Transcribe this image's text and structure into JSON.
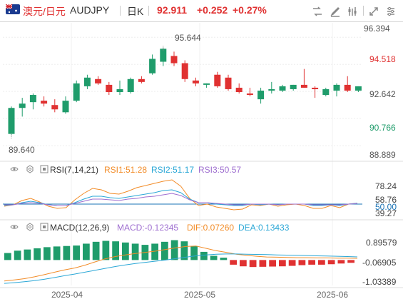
{
  "header": {
    "pair_cn": "澳元/日元",
    "symbol": "AUDJPY",
    "period": "日K",
    "price": "92.911",
    "change": "+0.252",
    "change_pct": "+0.27%",
    "up_color": "#e03131",
    "down_color": "#1f9c6b",
    "tools": [
      "compare-icon",
      "draw-icon",
      "indicator-icon",
      "fullscreen-icon",
      "settings-icon"
    ]
  },
  "chart_data": [
    {
      "type": "candlestick",
      "title": "澳元/日元 AUDJPY 日K",
      "y_ticks": [
        "96.394",
        "94.518",
        "92.642",
        "90.766",
        "88.889"
      ],
      "ylim": [
        88.2,
        97.0
      ],
      "annotations": {
        "high": "95.644",
        "low": "89.640"
      },
      "x_ticks": [
        "2025-04",
        "2025-05",
        "2025-06"
      ],
      "candles": [
        {
          "o": 89.7,
          "h": 91.6,
          "l": 89.64,
          "c": 91.5
        },
        {
          "o": 91.5,
          "h": 92.2,
          "l": 90.9,
          "c": 91.8
        },
        {
          "o": 91.9,
          "h": 92.5,
          "l": 91.4,
          "c": 92.4
        },
        {
          "o": 92.0,
          "h": 92.3,
          "l": 91.6,
          "c": 91.8
        },
        {
          "o": 91.7,
          "h": 92.1,
          "l": 91.2,
          "c": 91.4
        },
        {
          "o": 91.2,
          "h": 92.3,
          "l": 91.1,
          "c": 92.0
        },
        {
          "o": 92.0,
          "h": 93.4,
          "l": 91.9,
          "c": 93.2
        },
        {
          "o": 93.0,
          "h": 93.8,
          "l": 92.8,
          "c": 93.6
        },
        {
          "o": 93.5,
          "h": 93.7,
          "l": 93.1,
          "c": 93.2
        },
        {
          "o": 93.1,
          "h": 93.3,
          "l": 92.4,
          "c": 92.6
        },
        {
          "o": 92.6,
          "h": 93.4,
          "l": 92.4,
          "c": 92.8
        },
        {
          "o": 92.6,
          "h": 93.6,
          "l": 92.5,
          "c": 93.5
        },
        {
          "o": 93.5,
          "h": 93.7,
          "l": 93.2,
          "c": 93.3
        },
        {
          "o": 93.9,
          "h": 95.2,
          "l": 93.8,
          "c": 94.9
        },
        {
          "o": 94.7,
          "h": 95.644,
          "l": 94.4,
          "c": 95.6
        },
        {
          "o": 95.1,
          "h": 95.4,
          "l": 94.4,
          "c": 94.6
        },
        {
          "o": 94.6,
          "h": 94.8,
          "l": 93.3,
          "c": 93.5
        },
        {
          "o": 93.4,
          "h": 93.6,
          "l": 93.0,
          "c": 93.2
        },
        {
          "o": 93.1,
          "h": 93.2,
          "l": 92.9,
          "c": 93.2
        },
        {
          "o": 93.8,
          "h": 94.0,
          "l": 92.9,
          "c": 93.0
        },
        {
          "o": 93.6,
          "h": 93.8,
          "l": 92.7,
          "c": 92.8
        },
        {
          "o": 92.9,
          "h": 93.2,
          "l": 92.5,
          "c": 92.6
        },
        {
          "o": 92.5,
          "h": 92.9,
          "l": 92.3,
          "c": 92.4
        },
        {
          "o": 92.1,
          "h": 92.9,
          "l": 91.8,
          "c": 92.7
        },
        {
          "o": 92.7,
          "h": 93.3,
          "l": 92.5,
          "c": 92.8
        },
        {
          "o": 92.7,
          "h": 93.1,
          "l": 92.6,
          "c": 93.0
        },
        {
          "o": 92.8,
          "h": 93.1,
          "l": 92.7,
          "c": 93.1
        },
        {
          "o": 93.1,
          "h": 94.2,
          "l": 92.9,
          "c": 92.9
        },
        {
          "o": 92.9,
          "h": 93.0,
          "l": 92.2,
          "c": 92.8
        },
        {
          "o": 92.4,
          "h": 92.9,
          "l": 92.3,
          "c": 92.8
        },
        {
          "o": 92.7,
          "h": 93.2,
          "l": 92.3,
          "c": 93.1
        },
        {
          "o": 93.1,
          "h": 93.7,
          "l": 92.6,
          "c": 92.7
        },
        {
          "o": 92.7,
          "h": 93.0,
          "l": 92.6,
          "c": 93.0
        }
      ]
    },
    {
      "type": "line",
      "title": "RSI(7,14,21)",
      "legend": [
        {
          "label": "RSI1:51.28",
          "color": "#f28c28"
        },
        {
          "label": "RSI2:51.17",
          "color": "#2aa7d6"
        },
        {
          "label": "RSI3:50.57",
          "color": "#9f6fd0"
        }
      ],
      "y_ticks": [
        "78.24",
        "58.76",
        "50.00",
        "39.27"
      ],
      "ylim": [
        30,
        88
      ],
      "reference": 50.0,
      "series": [
        {
          "name": "RSI1",
          "color": "#f28c28",
          "values": [
            47,
            49,
            55,
            58,
            53,
            47,
            44,
            45,
            56,
            65,
            72,
            70,
            65,
            64,
            68,
            73,
            76,
            79,
            82,
            84,
            75,
            58,
            48,
            50,
            46,
            44,
            42,
            43,
            49,
            48,
            50,
            47,
            49,
            50,
            48,
            44,
            44,
            48,
            45,
            50,
            51.28
          ]
        },
        {
          "name": "RSI2",
          "color": "#2aa7d6",
          "values": [
            48,
            49,
            52,
            54,
            52,
            49,
            48,
            48,
            52,
            57,
            61,
            61,
            59,
            58,
            60,
            62,
            64,
            66,
            69,
            70,
            66,
            57,
            52,
            52,
            50,
            49,
            48,
            48,
            50,
            49,
            50,
            49,
            50,
            50,
            50,
            48,
            48,
            49,
            48,
            50,
            51.17
          ]
        },
        {
          "name": "RSI3",
          "color": "#9f6fd0",
          "values": [
            49,
            49,
            51,
            52,
            51,
            49,
            48,
            48,
            51,
            54,
            57,
            57,
            56,
            55,
            57,
            58,
            60,
            61,
            63,
            65,
            62,
            56,
            52,
            52,
            51,
            50,
            49,
            49,
            50,
            50,
            50,
            49,
            50,
            50,
            50,
            49,
            49,
            49,
            49,
            50,
            50.57
          ]
        }
      ]
    },
    {
      "type": "bar",
      "title": "MACD(12,26,9)",
      "legend": [
        {
          "label": "MACD:-0.12345",
          "color": "#9f6fd0"
        },
        {
          "label": "DIF:0.07260",
          "color": "#f28c28"
        },
        {
          "label": "DEA:0.13433",
          "color": "#2aa7d6"
        }
      ],
      "y_ticks": [
        "0.89579",
        "-0.06905",
        "-1.03389"
      ],
      "ylim": [
        -1.15,
        1.05
      ],
      "histogram": [
        0.3,
        0.4,
        0.45,
        0.5,
        0.55,
        0.58,
        0.6,
        0.62,
        0.7,
        0.78,
        0.82,
        0.8,
        0.75,
        0.7,
        0.65,
        0.7,
        0.78,
        0.85,
        0.8,
        0.6,
        0.35,
        0.18,
        0.1,
        -0.2,
        -0.27,
        -0.3,
        -0.29,
        -0.28,
        -0.27,
        -0.25,
        -0.22,
        -0.2,
        -0.2,
        -0.18,
        -0.15,
        -0.12
      ],
      "dif": [
        -0.9,
        -0.85,
        -0.8,
        -0.72,
        -0.62,
        -0.52,
        -0.42,
        -0.34,
        -0.22,
        -0.08,
        0.05,
        0.15,
        0.22,
        0.28,
        0.33,
        0.38,
        0.45,
        0.52,
        0.58,
        0.6,
        0.5,
        0.4,
        0.33,
        0.25,
        0.2,
        0.16,
        0.13,
        0.12,
        0.11,
        0.1,
        0.1,
        0.09,
        0.09,
        0.08,
        0.08,
        0.0726
      ],
      "dea": [
        -1.0,
        -0.97,
        -0.93,
        -0.88,
        -0.82,
        -0.75,
        -0.67,
        -0.6,
        -0.52,
        -0.44,
        -0.36,
        -0.28,
        -0.21,
        -0.15,
        -0.1,
        -0.05,
        0.0,
        0.06,
        0.12,
        0.18,
        0.22,
        0.25,
        0.26,
        0.26,
        0.25,
        0.24,
        0.23,
        0.22,
        0.21,
        0.2,
        0.19,
        0.18,
        0.17,
        0.16,
        0.15,
        0.13433
      ]
    }
  ]
}
